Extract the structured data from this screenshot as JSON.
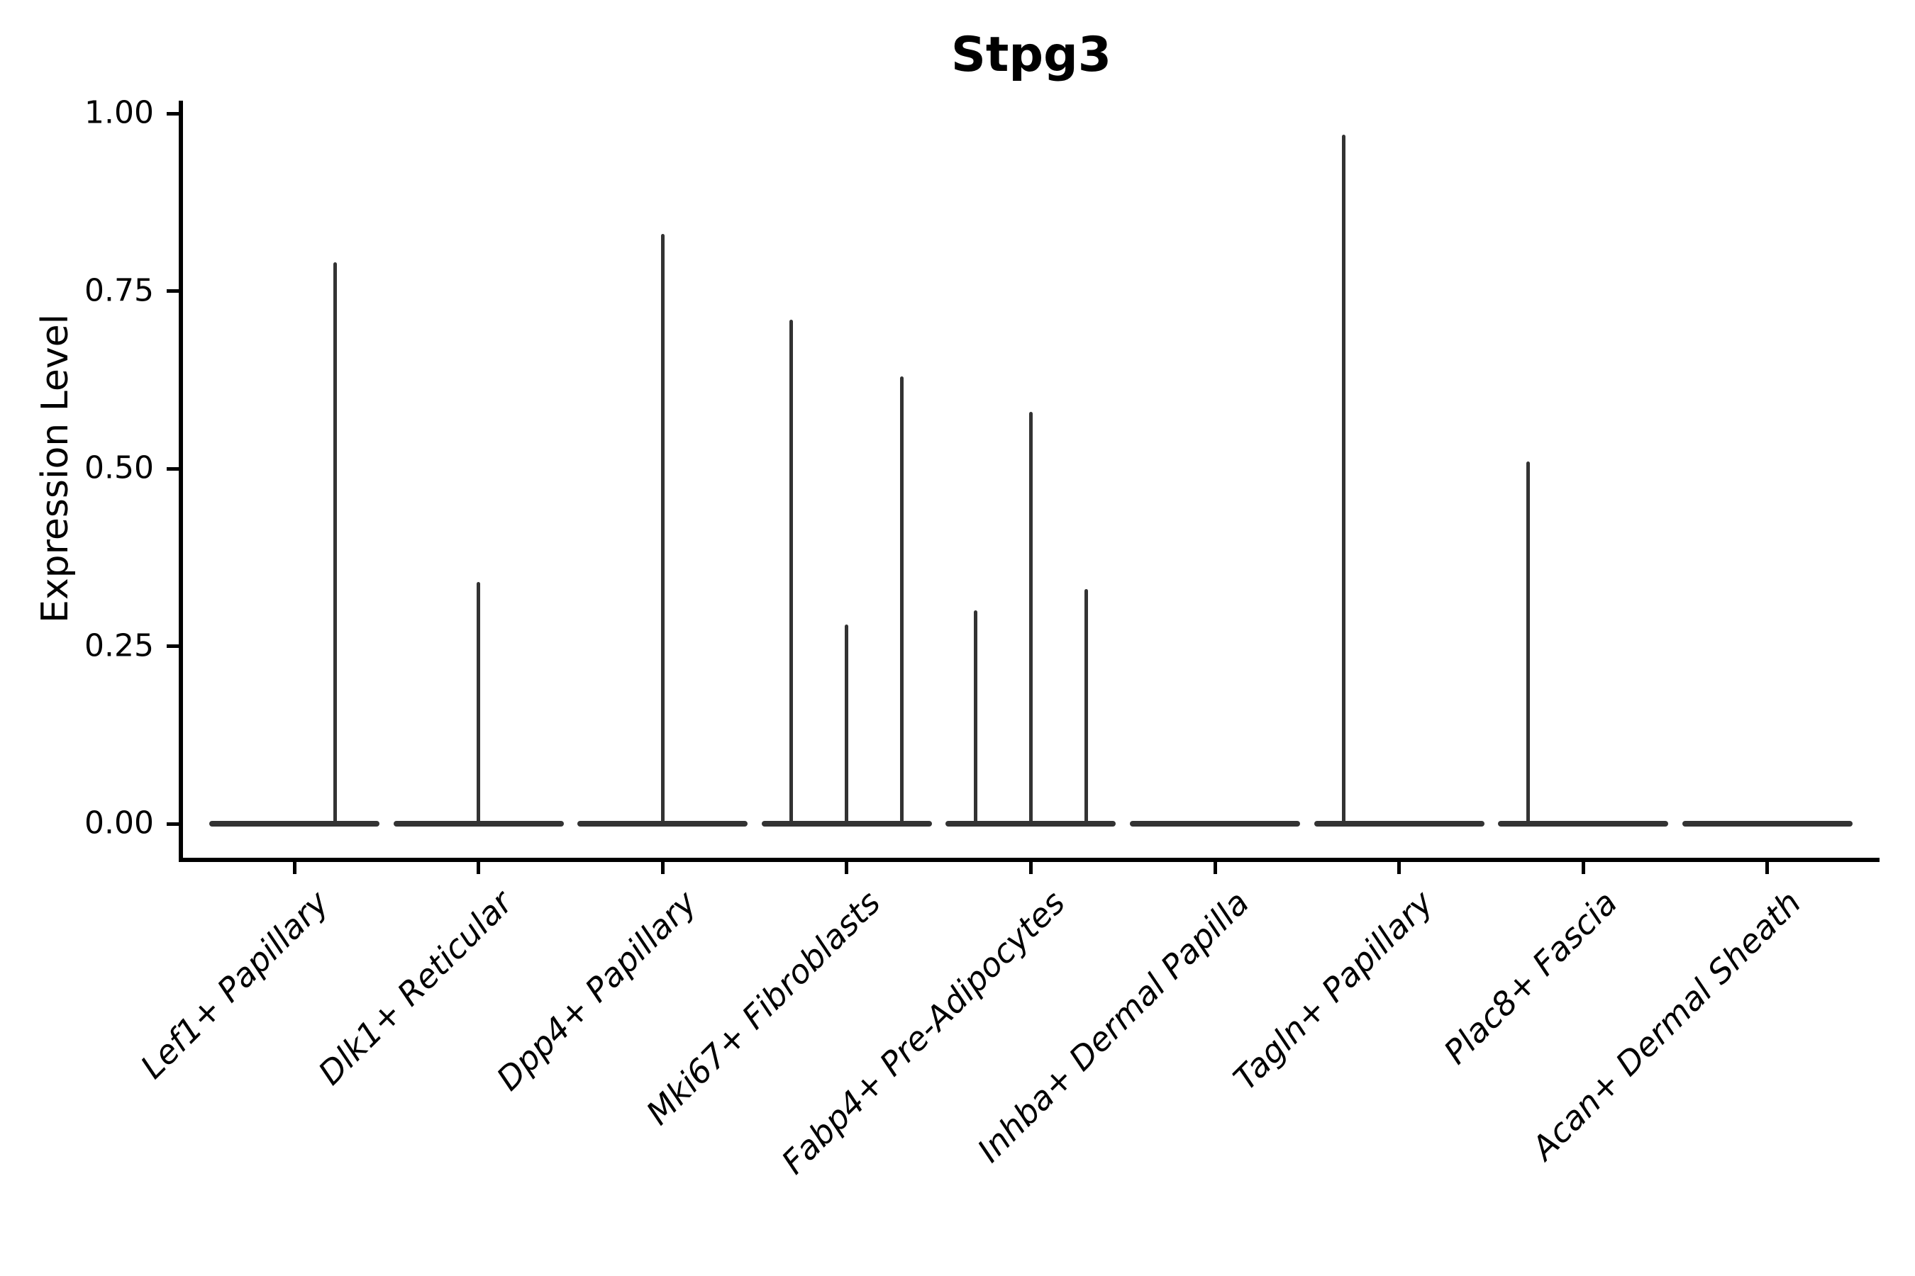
{
  "title": "Stpg3",
  "chart_data": {
    "type": "violin",
    "title": "Stpg3",
    "xlabel": "",
    "ylabel": "Expression Level",
    "ylim": [
      0,
      1.0
    ],
    "ytick_values": [
      0,
      0.25,
      0.5,
      0.75,
      1.0
    ],
    "ytick_labels": [
      "0.00",
      "0.25",
      "0.50",
      "0.75",
      "1.00"
    ],
    "grid": false,
    "legend_position": "none",
    "violin_color": "#333333",
    "axis_color": "#000000",
    "categories": [
      "Lef1+ Papillary",
      "Dlk1+ Reticular",
      "Dpp4+ Papillary",
      "Mki67+ Fibroblasts",
      "Fabp4+ Pre-Adipocytes",
      "Inhba+ Dermal Papilla",
      "Tagln+ Papillary",
      "Plac8+ Fascia",
      "Acan+ Dermal Sheath"
    ],
    "series": [
      {
        "category": "Lef1+ Papillary",
        "base_value": 0,
        "spikes": [
          {
            "rel_x": 0.22,
            "value": 0.79
          }
        ]
      },
      {
        "category": "Dlk1+ Reticular",
        "base_value": 0,
        "spikes": [
          {
            "rel_x": 0.0,
            "value": 0.34
          }
        ]
      },
      {
        "category": "Dpp4+ Papillary",
        "base_value": 0,
        "spikes": [
          {
            "rel_x": 0.0,
            "value": 0.83
          }
        ]
      },
      {
        "category": "Mki67+ Fibroblasts",
        "base_value": 0,
        "spikes": [
          {
            "rel_x": -0.3,
            "value": 0.71
          },
          {
            "rel_x": 0.0,
            "value": 0.28
          },
          {
            "rel_x": 0.3,
            "value": 0.63
          }
        ]
      },
      {
        "category": "Fabp4+ Pre-Adipocytes",
        "base_value": 0,
        "spikes": [
          {
            "rel_x": -0.3,
            "value": 0.3
          },
          {
            "rel_x": 0.0,
            "value": 0.58
          },
          {
            "rel_x": 0.3,
            "value": 0.33
          }
        ]
      },
      {
        "category": "Inhba+ Dermal Papilla",
        "base_value": 0,
        "spikes": []
      },
      {
        "category": "Tagln+ Papillary",
        "base_value": 0,
        "spikes": [
          {
            "rel_x": -0.3,
            "value": 0.97
          }
        ]
      },
      {
        "category": "Plac8+ Fascia",
        "base_value": 0,
        "spikes": [
          {
            "rel_x": -0.3,
            "value": 0.51
          }
        ]
      },
      {
        "category": "Acan+ Dermal Sheath",
        "base_value": 0,
        "spikes": []
      }
    ]
  }
}
